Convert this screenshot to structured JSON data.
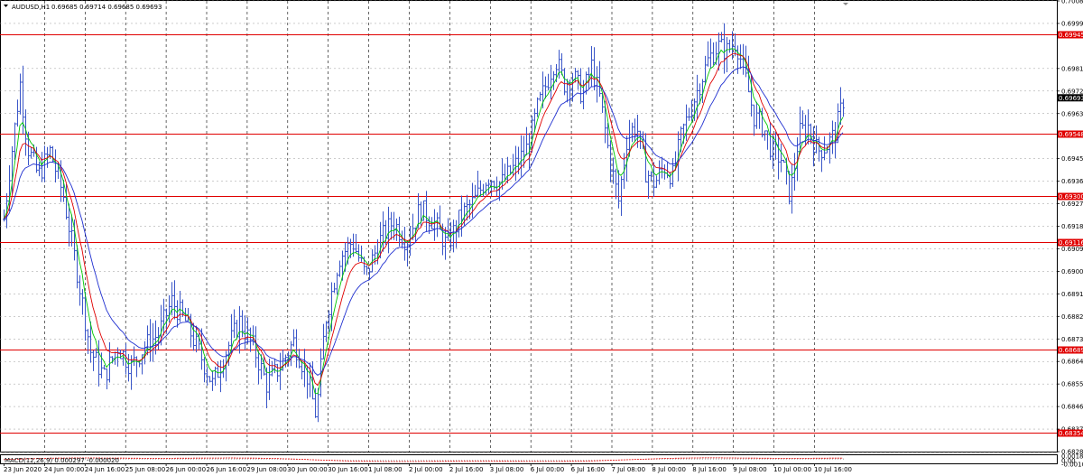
{
  "header": {
    "symbol_label": "AUDUSD,H1",
    "ohlc": "0.69685 0.69714 0.69685 0.69693"
  },
  "price_axis": {
    "ticks": [
      "0.70080",
      "0.69990",
      "0.69810",
      "0.69720",
      "0.69630",
      "0.69450",
      "0.69360",
      "0.69270",
      "0.69180",
      "0.69090",
      "0.69000",
      "0.68910",
      "0.68820",
      "0.68730",
      "0.68640",
      "0.68550",
      "0.68460",
      "0.68370",
      "0.68280"
    ],
    "current_price": "0.69693"
  },
  "levels": [
    {
      "label": "0.69945",
      "value": 0.69945
    },
    {
      "label": "0.69548",
      "value": 0.69548
    },
    {
      "label": "0.69300",
      "value": 0.693
    },
    {
      "label": "0.69116",
      "value": 0.69116
    },
    {
      "label": "0.68689",
      "value": 0.68689
    },
    {
      "label": "0.68354",
      "value": 0.68354
    }
  ],
  "macd": {
    "label": "MACD(12,26,9) 0.000297 -0.000020",
    "ticks": [
      "0.001884",
      "0.00",
      "-0.001095"
    ]
  },
  "time_axis": {
    "labels": [
      "23 Jun 2020",
      "24 Jun 00:00",
      "24 Jun 16:00",
      "25 Jun 08:00",
      "26 Jun 00:00",
      "26 Jun 16:00",
      "29 Jun 08:00",
      "30 Jun 00:00",
      "30 Jun 16:00",
      "1 Jul 08:00",
      "2 Jul 00:00",
      "2 Jul 16:00",
      "3 Jul 08:00",
      "6 Jul 00:00",
      "6 Jul 16:00",
      "7 Jul 08:00",
      "8 Jul 00:00",
      "8 Jul 16:00",
      "9 Jul 08:00",
      "10 Jul 00:00",
      "10 Jul 16:00"
    ]
  },
  "colors": {
    "bars": "#3a56c8",
    "level_line": "#e00000",
    "ma_fast": "#00c800",
    "ma_mid": "#e00000",
    "ma_slow": "#1f2fd0",
    "grid": "#c8c8c8",
    "price_box": "#000000"
  },
  "chart_data": {
    "type": "ohlc",
    "timeframe": "H1",
    "ylim": [
      0.6828,
      0.7008
    ],
    "series": [
      {
        "name": "AUDUSD",
        "type": "ohlc"
      }
    ],
    "close_path": [
      [
        0,
        0.6908
      ],
      [
        10,
        0.694
      ],
      [
        22,
        0.6975
      ],
      [
        30,
        0.695
      ],
      [
        42,
        0.6938
      ],
      [
        55,
        0.6948
      ],
      [
        70,
        0.693
      ],
      [
        85,
        0.69
      ],
      [
        100,
        0.6868
      ],
      [
        115,
        0.6858
      ],
      [
        130,
        0.687
      ],
      [
        145,
        0.6862
      ],
      [
        160,
        0.687
      ],
      [
        175,
        0.6875
      ],
      [
        190,
        0.6888
      ],
      [
        205,
        0.688
      ],
      [
        220,
        0.6868
      ],
      [
        235,
        0.6855
      ],
      [
        250,
        0.6868
      ],
      [
        265,
        0.688
      ],
      [
        280,
        0.687
      ],
      [
        295,
        0.6855
      ],
      [
        310,
        0.6862
      ],
      [
        325,
        0.6872
      ],
      [
        340,
        0.6858
      ],
      [
        350,
        0.6842
      ],
      [
        360,
        0.688
      ],
      [
        375,
        0.6905
      ],
      [
        390,
        0.6912
      ],
      [
        405,
        0.6898
      ],
      [
        420,
        0.6912
      ],
      [
        435,
        0.692
      ],
      [
        450,
        0.6912
      ],
      [
        465,
        0.6925
      ],
      [
        480,
        0.692
      ],
      [
        495,
        0.691
      ],
      [
        510,
        0.6922
      ],
      [
        525,
        0.6928
      ],
      [
        540,
        0.6938
      ],
      [
        555,
        0.6935
      ],
      [
        570,
        0.6942
      ],
      [
        585,
        0.695
      ],
      [
        595,
        0.6965
      ],
      [
        605,
        0.6975
      ],
      [
        615,
        0.6985
      ],
      [
        625,
        0.6975
      ],
      [
        635,
        0.6978
      ],
      [
        645,
        0.697
      ],
      [
        655,
        0.6982
      ],
      [
        665,
        0.6968
      ],
      [
        675,
        0.6945
      ],
      [
        685,
        0.6928
      ],
      [
        695,
        0.6955
      ],
      [
        705,
        0.6958
      ],
      [
        715,
        0.694
      ],
      [
        725,
        0.6935
      ],
      [
        735,
        0.6942
      ],
      [
        745,
        0.6938
      ],
      [
        755,
        0.6955
      ],
      [
        765,
        0.6965
      ],
      [
        775,
        0.6975
      ],
      [
        785,
        0.6985
      ],
      [
        795,
        0.699
      ],
      [
        805,
        0.6988
      ],
      [
        815,
        0.6992
      ],
      [
        825,
        0.6978
      ],
      [
        835,
        0.6962
      ],
      [
        845,
        0.6958
      ],
      [
        855,
        0.6948
      ],
      [
        865,
        0.6945
      ],
      [
        875,
        0.693
      ],
      [
        885,
        0.6955
      ],
      [
        895,
        0.6958
      ],
      [
        905,
        0.6948
      ],
      [
        915,
        0.695
      ],
      [
        925,
        0.6955
      ],
      [
        935,
        0.697
      ]
    ]
  }
}
